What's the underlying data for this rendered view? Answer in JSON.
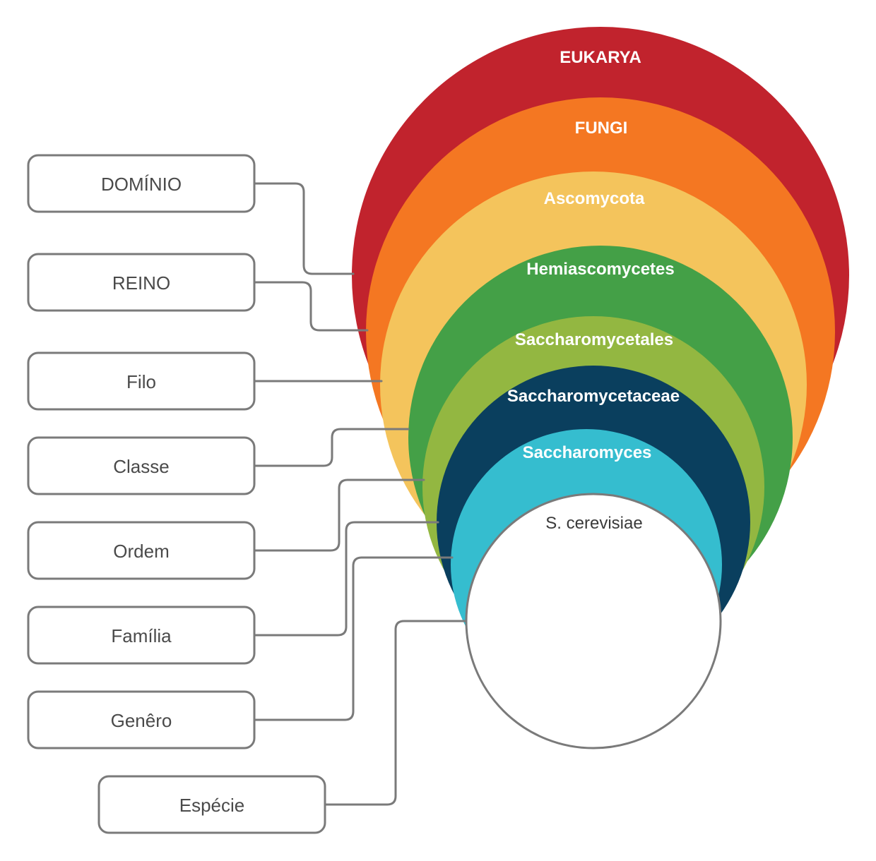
{
  "taxa": [
    {
      "name": "EUKARYA",
      "color": "#c1232d"
    },
    {
      "name": "FUNGI",
      "color": "#f47722"
    },
    {
      "name": "Ascomycota",
      "color": "#f4c45c"
    },
    {
      "name": "Hemiascomycetes",
      "color": "#44a047"
    },
    {
      "name": "Saccharomycetales",
      "color": "#93b741"
    },
    {
      "name": "Saccharomycetaceae",
      "color": "#0a3f5e"
    },
    {
      "name": "Saccharomyces",
      "color": "#35bdcf"
    },
    {
      "name": "S. cerevisiae",
      "color": "#ffffff"
    }
  ],
  "ranks": [
    "DOMÍNIO",
    "REINO",
    "Filo",
    "Classe",
    "Ordem",
    "Família",
    "Genêro",
    "Espécie"
  ]
}
